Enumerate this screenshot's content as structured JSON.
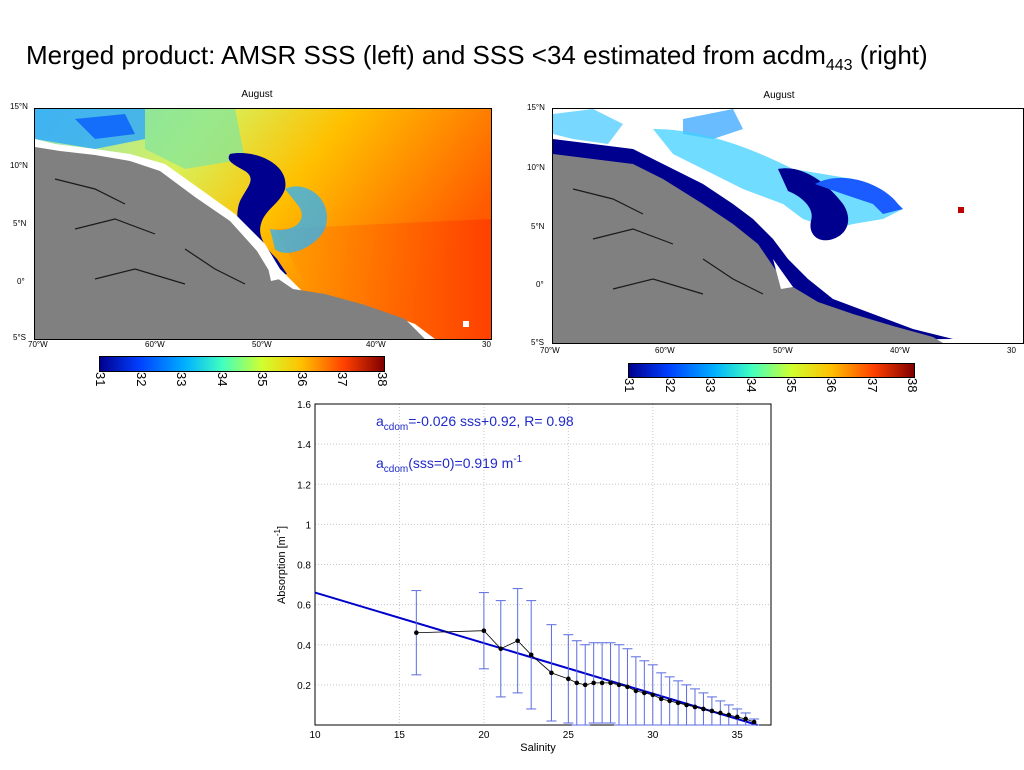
{
  "slide": {
    "title_main": "Merged product: AMSR SSS (left) and SSS <34 estimated from acdm",
    "title_sub": "443",
    "title_end": " (right)"
  },
  "maps": {
    "left": {
      "title": "August",
      "lat_labels": [
        "15°N",
        "10°N",
        "5°N",
        "0°",
        "5°S"
      ],
      "lon_labels": [
        "70°W",
        "60°W",
        "50°W",
        "40°W",
        "30"
      ]
    },
    "right": {
      "title": "August",
      "lat_labels": [
        "15°N",
        "10°N",
        "5°N",
        "0°",
        "5°S"
      ],
      "lon_labels": [
        "70°W",
        "60°W",
        "50°W",
        "40°W",
        "30"
      ]
    },
    "colorbar_labels": [
      "31",
      "32",
      "33",
      "34",
      "35",
      "36",
      "37",
      "38"
    ],
    "colors": {
      "land": "#808080",
      "fresh": "#00008f",
      "salty": "#ff4000"
    }
  },
  "chart_data": {
    "type": "scatter",
    "xlabel": "Salinity",
    "ylabel": "Absorption [m",
    "ylabel_sup": "-1",
    "ylabel_end": "]",
    "xlim": [
      10,
      37
    ],
    "ylim": [
      0,
      1.6
    ],
    "xticks": [
      10,
      15,
      20,
      25,
      30,
      35
    ],
    "yticks": [
      0.2,
      0.4,
      0.6,
      0.8,
      1,
      1.2,
      1.4,
      1.6
    ],
    "annotation1": {
      "a": "a",
      "sub": "cdom",
      "rest": "=-0.026 sss+0.92, R= 0.98"
    },
    "annotation2": {
      "a": "a",
      "sub": "cdom",
      "rest": "(sss=0)=0.919 m",
      "sup": "-1"
    },
    "fit": {
      "slope": -0.026,
      "intercept": 0.92
    },
    "points": [
      {
        "x": 16,
        "y": 0.46,
        "err": 0.21
      },
      {
        "x": 20,
        "y": 0.47,
        "err": 0.19
      },
      {
        "x": 21,
        "y": 0.38,
        "err": 0.24
      },
      {
        "x": 22,
        "y": 0.42,
        "err": 0.26
      },
      {
        "x": 22.8,
        "y": 0.35,
        "err": 0.27
      },
      {
        "x": 24,
        "y": 0.26,
        "err": 0.24
      },
      {
        "x": 25,
        "y": 0.23,
        "err": 0.22
      },
      {
        "x": 25.5,
        "y": 0.21,
        "err": 0.21
      },
      {
        "x": 26,
        "y": 0.2,
        "err": 0.2
      },
      {
        "x": 26.5,
        "y": 0.21,
        "err": 0.2
      },
      {
        "x": 27,
        "y": 0.21,
        "err": 0.2
      },
      {
        "x": 27.5,
        "y": 0.21,
        "err": 0.2
      },
      {
        "x": 28,
        "y": 0.2,
        "err": 0.2
      },
      {
        "x": 28.5,
        "y": 0.19,
        "err": 0.19
      },
      {
        "x": 29,
        "y": 0.17,
        "err": 0.17
      },
      {
        "x": 29.5,
        "y": 0.16,
        "err": 0.16
      },
      {
        "x": 30,
        "y": 0.15,
        "err": 0.15
      },
      {
        "x": 30.5,
        "y": 0.13,
        "err": 0.13
      },
      {
        "x": 31,
        "y": 0.12,
        "err": 0.12
      },
      {
        "x": 31.5,
        "y": 0.11,
        "err": 0.11
      },
      {
        "x": 32,
        "y": 0.1,
        "err": 0.1
      },
      {
        "x": 32.5,
        "y": 0.09,
        "err": 0.09
      },
      {
        "x": 33,
        "y": 0.08,
        "err": 0.08
      },
      {
        "x": 33.5,
        "y": 0.07,
        "err": 0.07
      },
      {
        "x": 34,
        "y": 0.06,
        "err": 0.06
      },
      {
        "x": 34.5,
        "y": 0.05,
        "err": 0.05
      },
      {
        "x": 35,
        "y": 0.04,
        "err": 0.04
      },
      {
        "x": 35.5,
        "y": 0.03,
        "err": 0.03
      },
      {
        "x": 36,
        "y": 0.015,
        "err": 0.015
      }
    ],
    "colors": {
      "fit_line": "#0000cc",
      "error_bars": "#5a6be0",
      "points": "#000000",
      "annotation": "#1f2ac8"
    },
    "grid": true
  }
}
